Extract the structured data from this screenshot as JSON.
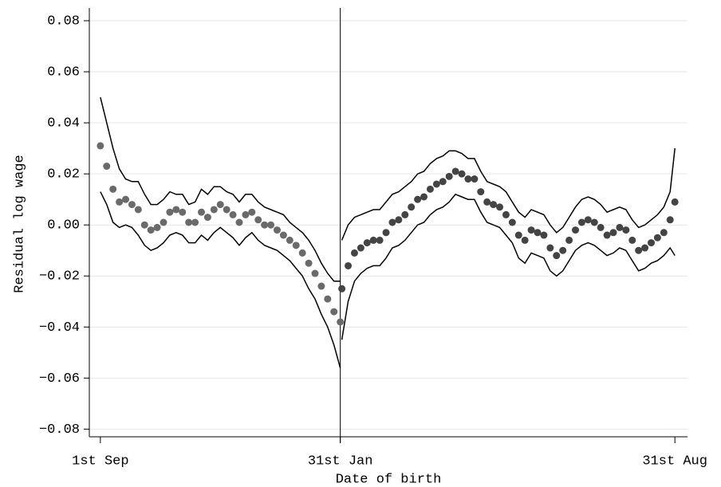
{
  "chart_data": {
    "type": "scatter",
    "ylabel": "Residual log wage",
    "xlabel": "Date of birth",
    "xlim": [
      -7,
      372
    ],
    "ylim": [
      -0.083,
      0.085
    ],
    "xticks": [
      {
        "value": 0,
        "label": "1st Sep"
      },
      {
        "value": 152,
        "label": "31st Jan"
      },
      {
        "value": 364,
        "label": "31st Aug"
      }
    ],
    "yticks": [
      {
        "value": -0.08,
        "label": "−0.08"
      },
      {
        "value": -0.06,
        "label": "−0.06"
      },
      {
        "value": -0.04,
        "label": "−0.04"
      },
      {
        "value": -0.02,
        "label": "−0.02"
      },
      {
        "value": 0,
        "label": "0.00"
      },
      {
        "value": 0.02,
        "label": "0.02"
      },
      {
        "value": 0.04,
        "label": "0.04"
      },
      {
        "value": 0.06,
        "label": "0.06"
      },
      {
        "value": 0.08,
        "label": "0.08"
      }
    ],
    "grid": true,
    "cutoff_line": true,
    "series": [
      {
        "mode": "markers",
        "color": "#6a6a6a",
        "x": [
          0,
          4,
          8,
          12,
          16,
          20,
          24,
          28,
          32,
          36,
          40,
          44,
          48,
          52,
          56,
          60,
          64,
          68,
          72,
          76,
          80,
          84,
          88,
          92,
          96,
          100,
          104,
          108,
          112,
          116,
          120,
          124,
          128,
          132,
          136,
          140,
          144,
          148,
          152
        ],
        "values": [
          0.031,
          0.023,
          0.014,
          0.009,
          0.01,
          0.008,
          0.006,
          0.0,
          -0.002,
          -0.001,
          0.001,
          0.005,
          0.006,
          0.005,
          0.001,
          0.001,
          0.005,
          0.003,
          0.006,
          0.008,
          0.006,
          0.004,
          0.001,
          0.004,
          0.005,
          0.002,
          0.0,
          0.0,
          -0.002,
          -0.004,
          -0.006,
          -0.008,
          -0.011,
          -0.015,
          -0.019,
          -0.024,
          -0.029,
          -0.034,
          -0.038
        ]
      },
      {
        "mode": "lines",
        "color": "#000000",
        "x": [
          0,
          4,
          8,
          12,
          16,
          20,
          24,
          28,
          32,
          36,
          40,
          44,
          48,
          52,
          56,
          60,
          64,
          68,
          72,
          76,
          80,
          84,
          88,
          92,
          96,
          100,
          104,
          108,
          112,
          116,
          120,
          124,
          128,
          132,
          136,
          140,
          144,
          148,
          152
        ],
        "values": [
          0.05,
          0.04,
          0.03,
          0.022,
          0.018,
          0.017,
          0.017,
          0.012,
          0.008,
          0.008,
          0.01,
          0.013,
          0.012,
          0.012,
          0.008,
          0.009,
          0.014,
          0.012,
          0.015,
          0.015,
          0.013,
          0.012,
          0.009,
          0.012,
          0.012,
          0.009,
          0.007,
          0.006,
          0.005,
          0.004,
          0.001,
          -0.001,
          -0.003,
          -0.006,
          -0.01,
          -0.015,
          -0.019,
          -0.022,
          -0.022
        ]
      },
      {
        "mode": "lines",
        "color": "#000000",
        "x": [
          0,
          4,
          8,
          12,
          16,
          20,
          24,
          28,
          32,
          36,
          40,
          44,
          48,
          52,
          56,
          60,
          64,
          68,
          72,
          76,
          80,
          84,
          88,
          92,
          96,
          100,
          104,
          108,
          112,
          116,
          120,
          124,
          128,
          132,
          136,
          140,
          144,
          148,
          152
        ],
        "values": [
          0.013,
          0.008,
          0.001,
          -0.001,
          0.0,
          -0.001,
          -0.004,
          -0.008,
          -0.01,
          -0.009,
          -0.007,
          -0.004,
          -0.003,
          -0.004,
          -0.007,
          -0.007,
          -0.004,
          -0.006,
          -0.003,
          -0.001,
          -0.003,
          -0.005,
          -0.008,
          -0.005,
          -0.003,
          -0.006,
          -0.008,
          -0.009,
          -0.01,
          -0.012,
          -0.014,
          -0.017,
          -0.02,
          -0.025,
          -0.029,
          -0.035,
          -0.04,
          -0.047,
          -0.056
        ]
      },
      {
        "mode": "markers",
        "color": "#444444",
        "x": [
          153,
          157,
          161,
          165,
          169,
          173,
          177,
          181,
          185,
          189,
          193,
          197,
          201,
          205,
          209,
          213,
          217,
          221,
          225,
          229,
          233,
          237,
          241,
          245,
          249,
          253,
          257,
          261,
          265,
          269,
          273,
          277,
          281,
          285,
          289,
          293,
          297,
          301,
          305,
          309,
          313,
          317,
          321,
          325,
          329,
          333,
          337,
          341,
          345,
          349,
          353,
          357,
          361,
          364
        ],
        "values": [
          -0.025,
          -0.016,
          -0.011,
          -0.009,
          -0.007,
          -0.006,
          -0.006,
          -0.003,
          0.001,
          0.002,
          0.004,
          0.007,
          0.01,
          0.011,
          0.014,
          0.016,
          0.017,
          0.019,
          0.021,
          0.02,
          0.018,
          0.018,
          0.013,
          0.009,
          0.008,
          0.007,
          0.004,
          0.001,
          -0.004,
          -0.006,
          -0.002,
          -0.003,
          -0.004,
          -0.009,
          -0.012,
          -0.01,
          -0.006,
          -0.002,
          0.001,
          0.002,
          0.001,
          -0.001,
          -0.004,
          -0.003,
          -0.001,
          -0.002,
          -0.006,
          -0.01,
          -0.009,
          -0.007,
          -0.005,
          -0.003,
          0.002,
          0.009
        ]
      },
      {
        "mode": "lines",
        "color": "#000000",
        "x": [
          153,
          157,
          161,
          165,
          169,
          173,
          177,
          181,
          185,
          189,
          193,
          197,
          201,
          205,
          209,
          213,
          217,
          221,
          225,
          229,
          233,
          237,
          241,
          245,
          249,
          253,
          257,
          261,
          265,
          269,
          273,
          277,
          281,
          285,
          289,
          293,
          297,
          301,
          305,
          309,
          313,
          317,
          321,
          325,
          329,
          333,
          337,
          341,
          345,
          349,
          353,
          357,
          361,
          364
        ],
        "values": [
          -0.006,
          0.0,
          0.003,
          0.004,
          0.005,
          0.006,
          0.006,
          0.009,
          0.012,
          0.013,
          0.015,
          0.017,
          0.02,
          0.021,
          0.024,
          0.026,
          0.027,
          0.029,
          0.029,
          0.028,
          0.026,
          0.026,
          0.021,
          0.017,
          0.016,
          0.015,
          0.013,
          0.009,
          0.005,
          0.003,
          0.006,
          0.005,
          0.004,
          0.0,
          -0.003,
          -0.001,
          0.003,
          0.007,
          0.01,
          0.011,
          0.01,
          0.008,
          0.005,
          0.006,
          0.007,
          0.006,
          0.002,
          -0.001,
          0.0,
          0.002,
          0.004,
          0.007,
          0.013,
          0.03
        ]
      },
      {
        "mode": "lines",
        "color": "#000000",
        "x": [
          153,
          157,
          161,
          165,
          169,
          173,
          177,
          181,
          185,
          189,
          193,
          197,
          201,
          205,
          209,
          213,
          217,
          221,
          225,
          229,
          233,
          237,
          241,
          245,
          249,
          253,
          257,
          261,
          265,
          269,
          273,
          277,
          281,
          285,
          289,
          293,
          297,
          301,
          305,
          309,
          313,
          317,
          321,
          325,
          329,
          333,
          337,
          341,
          345,
          349,
          353,
          357,
          361,
          364
        ],
        "values": [
          -0.045,
          -0.03,
          -0.022,
          -0.019,
          -0.017,
          -0.016,
          -0.016,
          -0.013,
          -0.009,
          -0.008,
          -0.006,
          -0.003,
          0.0,
          0.001,
          0.004,
          0.006,
          0.007,
          0.009,
          0.012,
          0.011,
          0.01,
          0.01,
          0.005,
          0.001,
          0.0,
          -0.001,
          -0.004,
          -0.007,
          -0.013,
          -0.015,
          -0.011,
          -0.012,
          -0.013,
          -0.018,
          -0.02,
          -0.018,
          -0.014,
          -0.01,
          -0.008,
          -0.007,
          -0.008,
          -0.01,
          -0.012,
          -0.011,
          -0.009,
          -0.01,
          -0.014,
          -0.018,
          -0.017,
          -0.015,
          -0.014,
          -0.012,
          -0.009,
          -0.012
        ]
      }
    ]
  }
}
